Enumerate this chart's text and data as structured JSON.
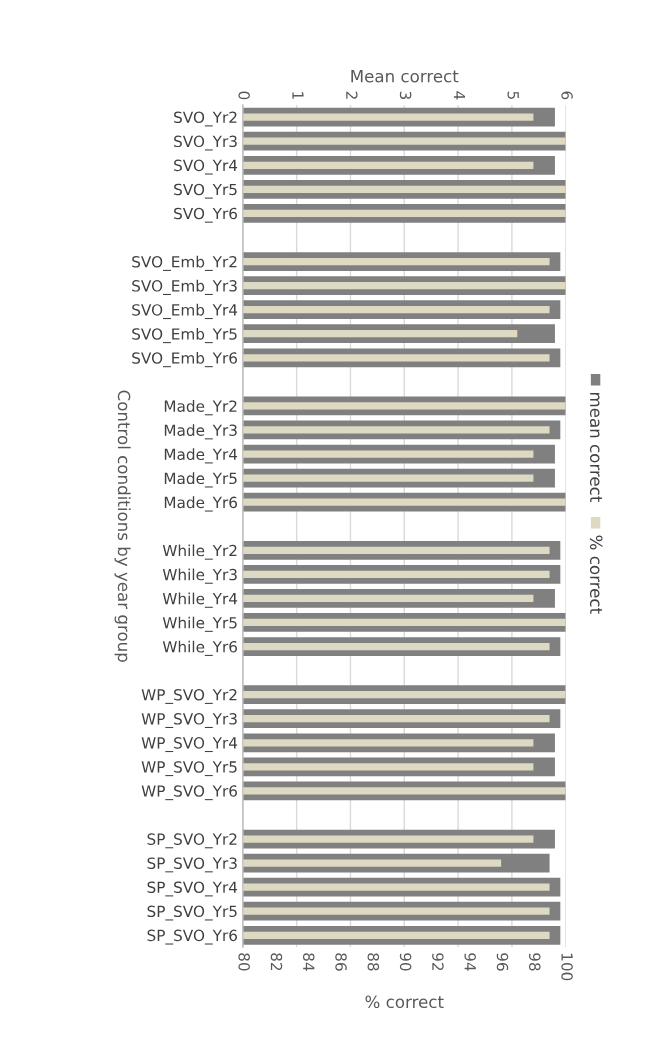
{
  "chart_data": {
    "type": "bar",
    "orientation": "horizontal",
    "categories": [
      "SVO_Yr2",
      "SVO_Yr3",
      "SVO_Yr4",
      "SVO_Yr5",
      "SVO_Yr6",
      null,
      "SVO_Emb_Yr2",
      "SVO_Emb_Yr3",
      "SVO_Emb_Yr4",
      "SVO_Emb_Yr5",
      "SVO_Emb_Yr6",
      null,
      "Made_Yr2",
      "Made_Yr3",
      "Made_Yr4",
      "Made_Yr5",
      "Made_Yr6",
      null,
      "While_Yr2",
      "While_Yr3",
      "While_Yr4",
      "While_Yr5",
      "While_Yr6",
      null,
      "WP_SVO_Yr2",
      "WP_SVO_Yr3",
      "WP_SVO_Yr4",
      "WP_SVO_Yr5",
      "WP_SVO_Yr6",
      null,
      "SP_SVO_Yr2",
      "SP_SVO_Yr3",
      "SP_SVO_Yr4",
      "SP_SVO_Yr5",
      "SP_SVO_Yr6"
    ],
    "series": [
      {
        "name": "mean correct",
        "color": "#808080",
        "axis": "x2",
        "values": [
          5.8,
          6,
          5.8,
          6,
          6,
          null,
          5.9,
          6,
          5.9,
          5.8,
          5.9,
          null,
          6,
          5.9,
          5.8,
          5.8,
          6,
          null,
          5.9,
          5.9,
          5.8,
          6,
          5.9,
          null,
          6,
          5.9,
          5.8,
          5.8,
          6,
          null,
          5.8,
          5.7,
          5.9,
          5.9,
          5.9
        ]
      },
      {
        "name": "% correct",
        "color": "#ddd9c3",
        "values": [
          98,
          100,
          98,
          100,
          100,
          null,
          99,
          100,
          99,
          97,
          99,
          null,
          100,
          99,
          98,
          98,
          100,
          null,
          99,
          99,
          98,
          100,
          99,
          null,
          100,
          99,
          98,
          98,
          100,
          null,
          98,
          96,
          99,
          99,
          99
        ]
      }
    ],
    "xlabel": "% correct",
    "x2label": "Mean correct",
    "ylabel": "Control conditions by year group",
    "xlim": [
      80,
      100
    ],
    "xticks": [
      80,
      82,
      84,
      86,
      88,
      90,
      92,
      94,
      96,
      98,
      100
    ],
    "x2lim": [
      0,
      6
    ],
    "x2ticks": [
      0,
      1,
      2,
      3,
      4,
      5,
      6
    ],
    "grid": "x2",
    "legend": "right"
  }
}
